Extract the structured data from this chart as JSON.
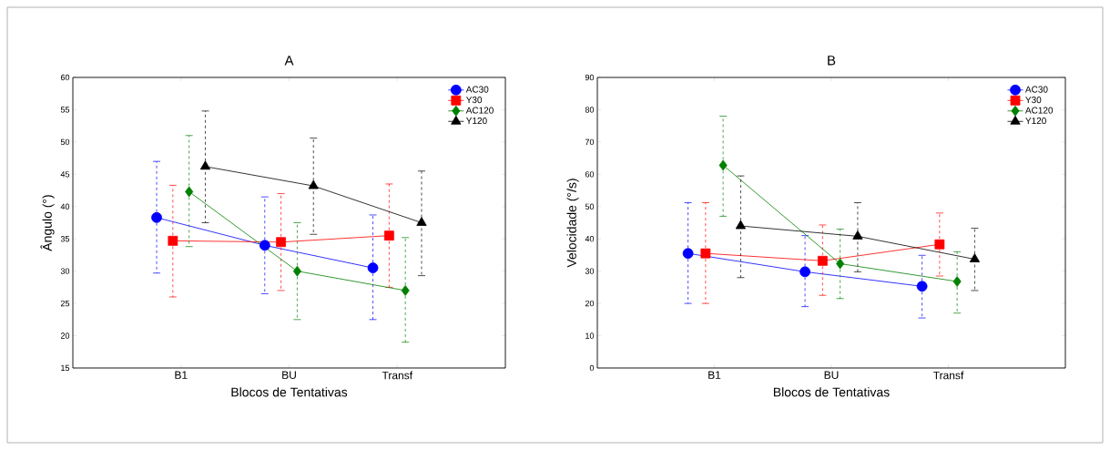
{
  "chart_data": [
    {
      "type": "line",
      "title": "A",
      "xlabel": "Blocos de Tentativas",
      "ylabel": "Ângulo (°)",
      "categories": [
        "B1",
        "BU",
        "Transf"
      ],
      "ylim": [
        15,
        60
      ],
      "yticks": [
        15,
        20,
        25,
        30,
        35,
        40,
        45,
        50,
        55,
        60
      ],
      "legend": "top right",
      "line_style": "solid",
      "grid": false,
      "series": [
        {
          "name": "AC30",
          "color": "#0000ff",
          "marker": "circle",
          "values": [
            38.3,
            34,
            30.5
          ],
          "errors": [
            [
              29.7,
              47
            ],
            [
              26.5,
              41.5
            ],
            [
              22.5,
              38.7
            ]
          ]
        },
        {
          "name": "Y30",
          "color": "#ff0000",
          "marker": "square",
          "values": [
            34.7,
            34.5,
            35.5
          ],
          "errors": [
            [
              26,
              43.3
            ],
            [
              27,
              42
            ],
            [
              27.5,
              43.5
            ]
          ]
        },
        {
          "name": "AC120",
          "color": "#008000",
          "marker": "diamond",
          "values": [
            42.3,
            30,
            27
          ],
          "errors": [
            [
              33.8,
              51
            ],
            [
              22.5,
              37.5
            ],
            [
              19,
              35.2
            ]
          ]
        },
        {
          "name": "Y120",
          "color": "#000000",
          "marker": "triangle",
          "values": [
            46.2,
            43.2,
            37.5
          ],
          "errors": [
            [
              37.5,
              54.8
            ],
            [
              35.7,
              50.6
            ],
            [
              29.3,
              45.5
            ]
          ]
        }
      ]
    },
    {
      "type": "line",
      "title": "B",
      "xlabel": "Blocos de Tentativas",
      "ylabel": "Velocidade (°/s)",
      "categories": [
        "B1",
        "BU",
        "Transf"
      ],
      "ylim": [
        0,
        90
      ],
      "yticks": [
        0,
        10,
        20,
        30,
        40,
        50,
        60,
        70,
        80,
        90
      ],
      "legend": "top right",
      "line_style": "solid",
      "grid": false,
      "series": [
        {
          "name": "AC30",
          "color": "#0000ff",
          "marker": "circle",
          "values": [
            35.5,
            29.8,
            25.3
          ],
          "errors": [
            [
              20,
              51.2
            ],
            [
              19,
              41
            ],
            [
              15.5,
              34.9
            ]
          ]
        },
        {
          "name": "Y30",
          "color": "#ff0000",
          "marker": "square",
          "values": [
            35.5,
            33.2,
            38.3
          ],
          "errors": [
            [
              20,
              51.2
            ],
            [
              22.5,
              44.3
            ],
            [
              28.5,
              48
            ]
          ]
        },
        {
          "name": "AC120",
          "color": "#008000",
          "marker": "diamond",
          "values": [
            62.8,
            32.3,
            26.8
          ],
          "errors": [
            [
              47,
              78
            ],
            [
              21.5,
              43
            ],
            [
              17,
              36
            ]
          ]
        },
        {
          "name": "Y120",
          "color": "#000000",
          "marker": "triangle",
          "values": [
            44,
            40.8,
            33.7
          ],
          "errors": [
            [
              28,
              59.5
            ],
            [
              29.8,
              51.2
            ],
            [
              24,
              43.3
            ]
          ]
        }
      ]
    }
  ]
}
